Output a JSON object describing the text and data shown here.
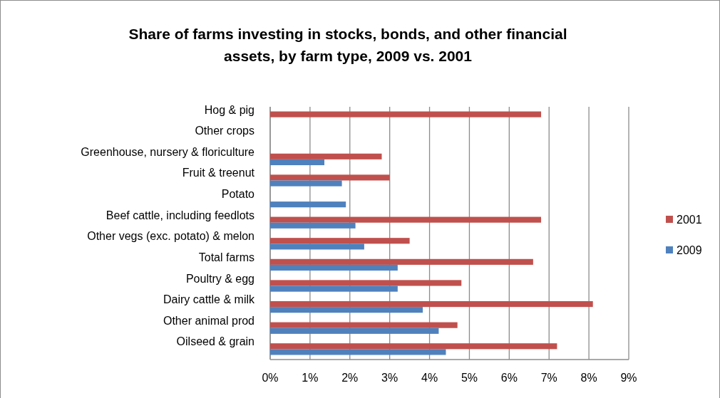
{
  "chart_data": {
    "type": "bar",
    "orientation": "horizontal",
    "title": "Share of farms investing in stocks, bonds, and other financial assets, by farm type, 2009 vs. 2001",
    "categories": [
      "Hog & pig",
      "Other crops",
      "Greenhouse, nursery & floriculture",
      "Fruit & treenut",
      "Potato",
      "Beef cattle, including feedlots",
      "Other vegs (exc. potato) & melon",
      "Total farms",
      "Poultry & egg",
      "Dairy cattle & milk",
      "Other animal prod",
      "Oilseed & grain"
    ],
    "series": [
      {
        "name": "2001",
        "color": "#c0504d",
        "values": [
          6.8,
          null,
          2.8,
          3.0,
          null,
          6.8,
          3.5,
          6.6,
          4.8,
          8.1,
          4.7,
          7.2
        ]
      },
      {
        "name": "2009",
        "color": "#4f81bd",
        "values": [
          null,
          null,
          1.36,
          1.8,
          1.9,
          2.14,
          2.36,
          3.2,
          3.2,
          3.83,
          4.23,
          4.41
        ]
      }
    ],
    "xlim": [
      0,
      9
    ],
    "xticks": [
      {
        "value": 0,
        "label": "0%"
      },
      {
        "value": 1,
        "label": "1%"
      },
      {
        "value": 2,
        "label": "2%"
      },
      {
        "value": 3,
        "label": "3%"
      },
      {
        "value": 4,
        "label": "4%"
      },
      {
        "value": 5,
        "label": "5%"
      },
      {
        "value": 6,
        "label": "6%"
      },
      {
        "value": 7,
        "label": "7%"
      },
      {
        "value": 8,
        "label": "8%"
      },
      {
        "value": 9,
        "label": "9%"
      }
    ],
    "grid": "x",
    "legend": "right"
  }
}
